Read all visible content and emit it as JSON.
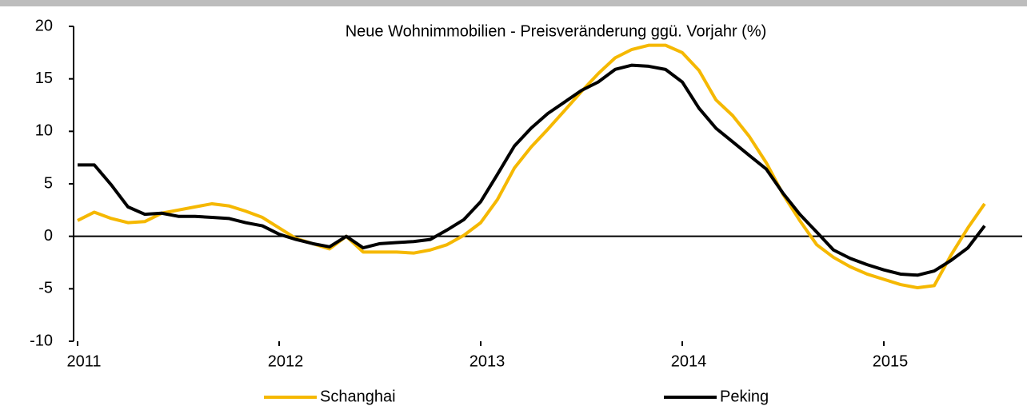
{
  "chart_data": {
    "type": "line",
    "title": "Neue Wohnimmobilien - Preisveränderung ggü. Vorjahr (%)",
    "x": [
      2011,
      2011.083,
      2011.167,
      2011.25,
      2011.333,
      2011.417,
      2011.5,
      2011.583,
      2011.667,
      2011.75,
      2011.833,
      2011.917,
      2012,
      2012.083,
      2012.167,
      2012.25,
      2012.333,
      2012.417,
      2012.5,
      2012.583,
      2012.667,
      2012.75,
      2012.833,
      2012.917,
      2013,
      2013.083,
      2013.167,
      2013.25,
      2013.333,
      2013.417,
      2013.5,
      2013.583,
      2013.667,
      2013.75,
      2013.833,
      2013.917,
      2014,
      2014.083,
      2014.167,
      2014.25,
      2014.333,
      2014.417,
      2014.5,
      2014.583,
      2014.667,
      2014.75,
      2014.833,
      2014.917,
      2015,
      2015.083,
      2015.167,
      2015.25,
      2015.333,
      2015.417,
      2015.5
    ],
    "series": [
      {
        "name": "Schanghai",
        "color": "#f5b800",
        "values": [
          1.5,
          2.3,
          1.7,
          1.3,
          1.4,
          2.2,
          2.5,
          2.8,
          3.1,
          2.9,
          2.4,
          1.8,
          0.8,
          -0.2,
          -0.7,
          -1.2,
          0,
          -1.5,
          -1.5,
          -1.5,
          -1.6,
          -1.3,
          -0.8,
          0.1,
          1.3,
          3.5,
          6.5,
          8.5,
          10.2,
          12,
          13.8,
          15.5,
          17,
          17.8,
          18.2,
          18.2,
          17.5,
          15.8,
          13,
          11.5,
          9.5,
          7,
          4,
          1.5,
          -0.8,
          -2,
          -2.9,
          -3.6,
          -4.1,
          -4.6,
          -4.9,
          -4.7,
          -1.8,
          0.8,
          3.1
        ]
      },
      {
        "name": "Peking",
        "color": "#000000",
        "values": [
          6.8,
          6.8,
          4.9,
          2.8,
          2.1,
          2.2,
          1.9,
          1.9,
          1.8,
          1.7,
          1.3,
          1.0,
          0.2,
          -0.3,
          -0.7,
          -1.0,
          0,
          -1.1,
          -0.7,
          -0.6,
          -0.5,
          -0.3,
          0.6,
          1.6,
          3.3,
          5.9,
          8.6,
          10.3,
          11.7,
          12.8,
          13.9,
          14.7,
          15.9,
          16.3,
          16.2,
          15.9,
          14.7,
          12.2,
          10.3,
          9.0,
          7.7,
          6.4,
          4.1,
          2.1,
          0.4,
          -1.3,
          -2.1,
          -2.7,
          -3.2,
          -3.6,
          -3.7,
          -3.3,
          -2.3,
          -1.1,
          1.0
        ]
      }
    ],
    "xlim": [
      2011,
      2015.6
    ],
    "xticks": [
      2011,
      2012,
      2013,
      2014,
      2015
    ],
    "ylim": [
      -10,
      20
    ],
    "yticks": [
      -10,
      -5,
      0,
      5,
      10,
      15,
      20
    ]
  }
}
